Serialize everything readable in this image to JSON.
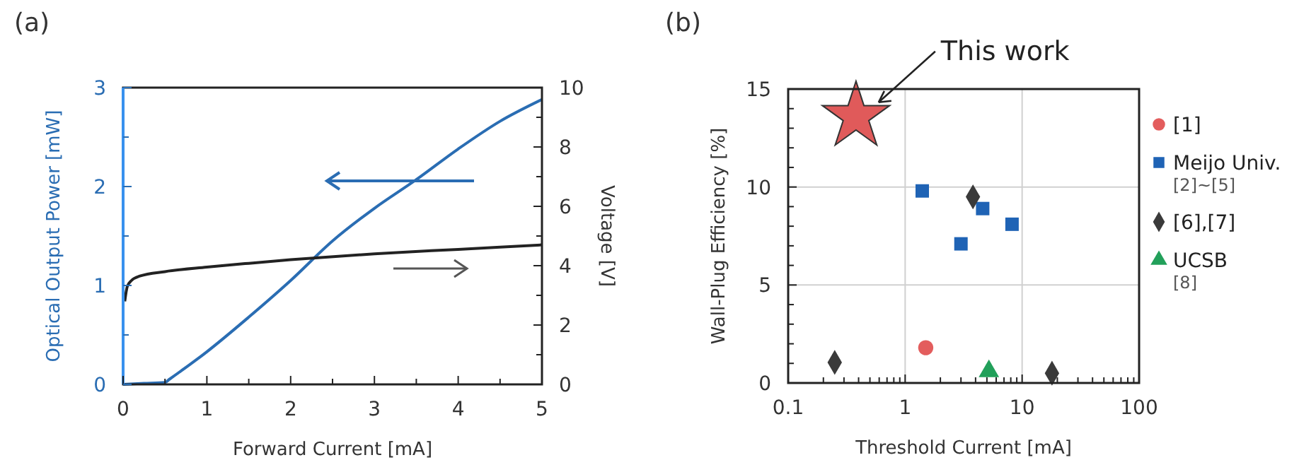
{
  "chart_data": [
    {
      "type": "line",
      "title": "(a)",
      "xlabel": "Forward Current [mA]",
      "ylabel": "Optical Output Power [mW]",
      "y2label": "Voltage [V]",
      "xlim": [
        0,
        5
      ],
      "ylim": [
        0,
        3
      ],
      "y2lim": [
        0,
        10
      ],
      "xticks": [
        0,
        {
          "value": 0.5,
          "label": null
        },
        1,
        {
          "value": 1.5,
          "label": null
        },
        2,
        {
          "value": 2.5,
          "label": null
        },
        3,
        {
          "value": 3.5,
          "label": null
        },
        4,
        {
          "value": 4.5,
          "label": null
        },
        5
      ],
      "yticks": [
        0,
        {
          "value": 0.5,
          "label": null
        },
        1,
        {
          "value": 1.5,
          "label": null
        },
        2,
        {
          "value": 2.5,
          "label": null
        },
        3
      ],
      "y2ticks": [
        0,
        {
          "value": 1,
          "label": null
        },
        2,
        {
          "value": 3,
          "label": null
        },
        4,
        {
          "value": 5,
          "label": null
        },
        6,
        {
          "value": 7,
          "label": null
        },
        8,
        {
          "value": 9,
          "label": null
        },
        10
      ],
      "grid": false,
      "legend": false,
      "marker": "none",
      "line_style": "solid",
      "series": [
        {
          "color": "#2a6db3",
          "x": [
            0,
            0.25,
            0.5,
            0.55,
            1,
            1.5,
            2,
            2.5,
            3,
            3.5,
            4,
            4.5,
            5
          ],
          "values": [
            0,
            0.01,
            0.02,
            0.05,
            0.33,
            0.68,
            1.05,
            1.45,
            1.78,
            2.07,
            2.38,
            2.66,
            2.88
          ]
        },
        {
          "color": "#222222",
          "axis": "y2",
          "x": [
            0.02,
            0.05,
            0.1,
            0.2,
            0.5,
            1,
            1.5,
            2,
            3,
            4,
            5
          ],
          "values": [
            2.8,
            3.3,
            3.5,
            3.65,
            3.8,
            3.95,
            4.08,
            4.2,
            4.4,
            4.55,
            4.7
          ]
        }
      ]
    },
    {
      "type": "scatter",
      "title": "(b)",
      "xlabel": "Threshold Current [mA]",
      "ylabel": "Wall-Plug Efficiency [%]",
      "log": "x",
      "xlim": [
        0.1,
        100
      ],
      "ylim": [
        0,
        15
      ],
      "xticks": [
        0.1,
        {
          "value": 0.2,
          "label": null
        },
        {
          "value": 0.3,
          "label": null
        },
        {
          "value": 0.4,
          "label": null
        },
        {
          "value": 0.5,
          "label": null
        },
        {
          "value": 0.6,
          "label": null
        },
        {
          "value": 0.7,
          "label": null
        },
        {
          "value": 0.8,
          "label": null
        },
        {
          "value": 0.9,
          "label": null
        },
        1,
        {
          "value": 2,
          "label": null
        },
        {
          "value": 3,
          "label": null
        },
        {
          "value": 4,
          "label": null
        },
        {
          "value": 5,
          "label": null
        },
        {
          "value": 6,
          "label": null
        },
        {
          "value": 7,
          "label": null
        },
        {
          "value": 8,
          "label": null
        },
        {
          "value": 9,
          "label": null
        },
        10,
        {
          "value": 20,
          "label": null
        },
        {
          "value": 30,
          "label": null
        },
        {
          "value": 40,
          "label": null
        },
        {
          "value": 50,
          "label": null
        },
        {
          "value": 60,
          "label": null
        },
        {
          "value": 70,
          "label": null
        },
        {
          "value": 80,
          "label": null
        },
        {
          "value": 90,
          "label": null
        },
        100
      ],
      "yticks": [
        0,
        {
          "value": 1,
          "label": null
        },
        {
          "value": 2,
          "label": null
        },
        {
          "value": 3,
          "label": null
        },
        {
          "value": 4,
          "label": null
        },
        5,
        {
          "value": 6,
          "label": null
        },
        {
          "value": 7,
          "label": null
        },
        {
          "value": 8,
          "label": null
        },
        {
          "value": 9,
          "label": null
        },
        10,
        {
          "value": 11,
          "label": null
        },
        {
          "value": 12,
          "label": null
        },
        {
          "value": 13,
          "label": null
        },
        {
          "value": 14,
          "label": null
        },
        15
      ],
      "grid": true,
      "legend": "right",
      "annotations": [
        "This work"
      ],
      "series": [
        {
          "color": "#e05a5a",
          "marker": "star",
          "x": [
            0.38
          ],
          "values": [
            13.6
          ]
        },
        {
          "name": "[1]",
          "color": "#e35d5d",
          "marker": "circle",
          "x": [
            1.5
          ],
          "values": [
            1.8
          ]
        },
        {
          "name": "Meijo Univ. [2]~[5]",
          "color": "#1f63b5",
          "marker": "square",
          "x": [
            1.4,
            3.0,
            4.6,
            8.2
          ],
          "values": [
            9.8,
            7.1,
            8.9,
            8.1
          ]
        },
        {
          "name": "[6],[7]",
          "color": "#3a3a3a",
          "marker": "diamond",
          "x": [
            0.25,
            3.8,
            18
          ],
          "values": [
            1.05,
            9.5,
            0.5
          ]
        },
        {
          "name": "UCSB [8]",
          "color": "#22a05a",
          "marker": "triangle",
          "x": [
            5.2
          ],
          "values": [
            0.6
          ]
        }
      ]
    }
  ]
}
